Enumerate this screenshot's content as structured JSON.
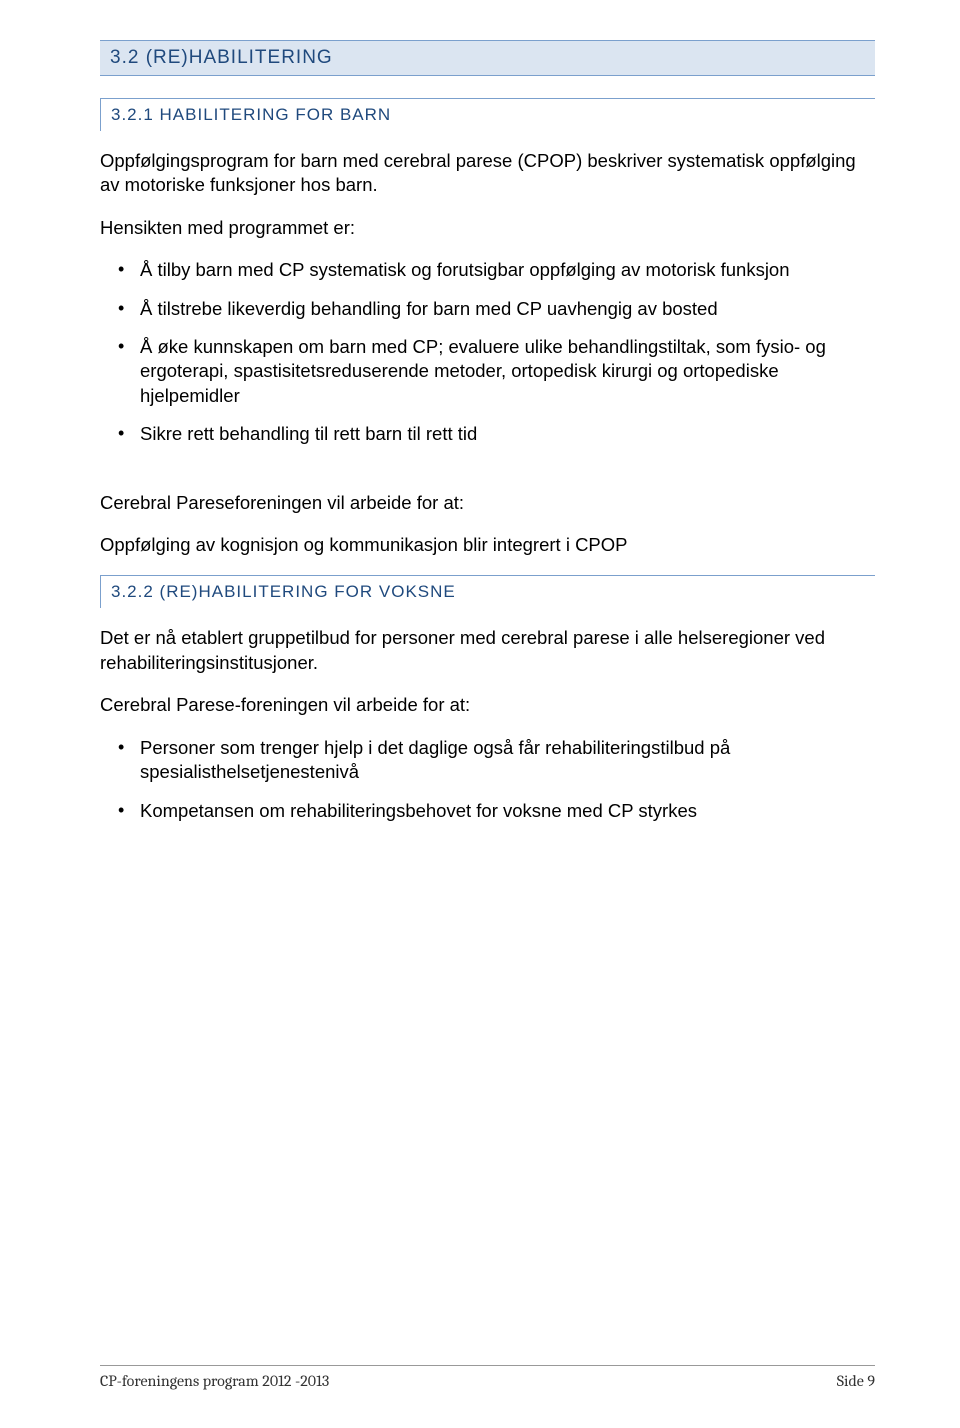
{
  "section_3_2": {
    "heading": "3.2  (RE)HABILITERING"
  },
  "section_3_2_1": {
    "heading": "3.2.1  HABILITERING FOR BARN",
    "intro": "Oppfølgingsprogram for barn med cerebral parese (CPOP) beskriver systematisk oppfølging av motoriske funksjoner hos barn.",
    "lead_in": "Hensikten med programmet er:",
    "bullets": [
      "Å tilby barn med CP systematisk og forutsigbar oppfølging av motorisk funksjon",
      "Å tilstrebe likeverdig behandling for barn med CP uavhengig av bosted",
      "Å øke kunnskapen om barn med CP; evaluere ulike behandlingstiltak, som fysio- og ergoterapi, spastisitetsreduserende metoder, ortopedisk kirurgi og ortopediske hjelpemidler",
      "Sikre rett behandling til rett barn til rett tid"
    ],
    "goal_title": "Cerebral Pareseforeningen vil arbeide for at:",
    "goal_text": "Oppfølging av kognisjon og kommunikasjon blir integrert i CPOP"
  },
  "section_3_2_2": {
    "heading": "3.2.2  (RE)HABILITERING FOR VOKSNE",
    "intro": "Det er nå etablert gruppetilbud for personer med cerebral parese i alle helseregioner ved rehabiliteringsinstitusjoner.",
    "goal_title": "Cerebral Parese-foreningen vil arbeide for at:",
    "bullets": [
      "Personer som trenger hjelp i det daglige også får rehabiliteringstilbud på spesialisthelsetjenestenivå",
      "Kompetansen om rehabiliteringsbehovet for voksne med CP styrkes"
    ]
  },
  "footer": {
    "left": "CP-foreningens program 2012 -2013",
    "right": "Side 9"
  }
}
